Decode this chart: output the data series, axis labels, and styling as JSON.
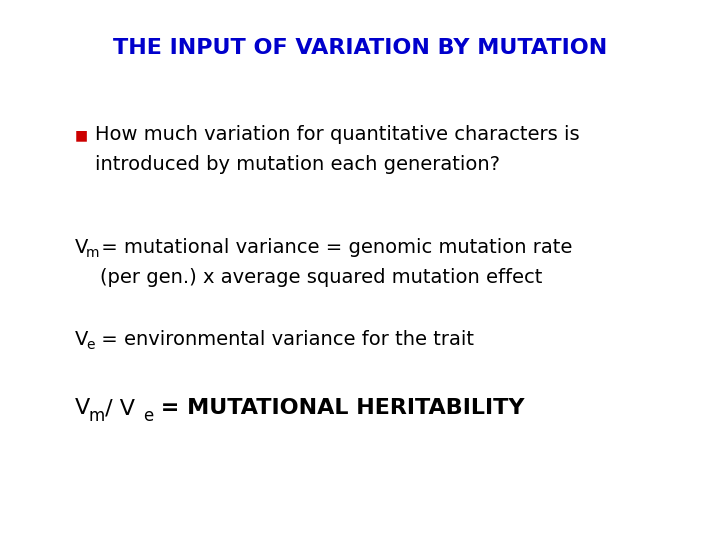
{
  "title": "THE INPUT OF VARIATION BY MUTATION",
  "title_color": "#0000CC",
  "title_fontsize": 16,
  "background_color": "#FFFFFF",
  "bullet_color": "#CC0000",
  "text_color": "#000000",
  "bullet_text_line1": "How much variation for quantitative characters is",
  "bullet_text_line2": "introduced by mutation each generation?",
  "vm_line1_post": " = mutational variance = genomic mutation rate",
  "vm_line2": "    (per gen.) x average squared mutation effect",
  "ve_line_post": " = environmental variance for the trait",
  "last_line_bold": " = MUTATIONAL HERITABILITY",
  "font_family": "DejaVu Sans",
  "body_fontsize": 14,
  "last_fontsize": 16,
  "fig_width": 7.2,
  "fig_height": 5.4,
  "dpi": 100
}
